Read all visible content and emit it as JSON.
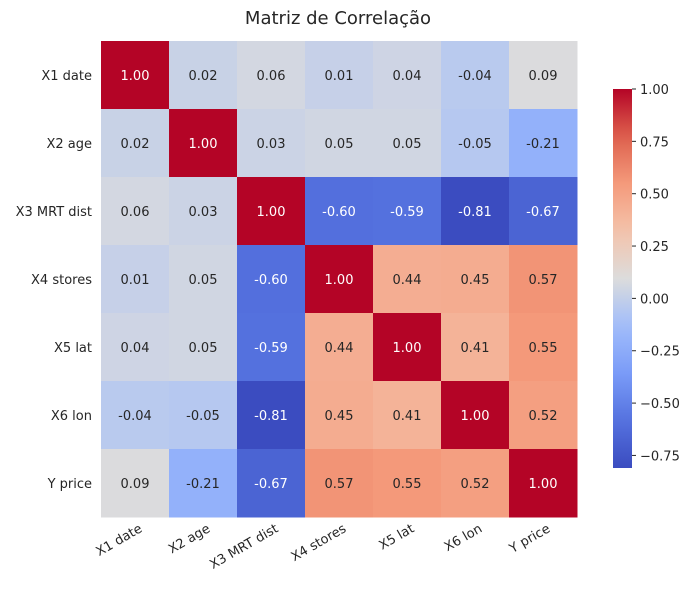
{
  "chart_data": {
    "type": "heatmap",
    "title": "Matriz de Correlação",
    "rows": [
      "X1 date",
      "X2 age",
      "X3 MRT dist",
      "X4 stores",
      "X5 lat",
      "X6 lon",
      "Y price"
    ],
    "columns": [
      "X1 date",
      "X2 age",
      "X3 MRT dist",
      "X4 stores",
      "X5 lat",
      "X6 lon",
      "Y price"
    ],
    "values": [
      [
        1.0,
        0.02,
        0.06,
        0.01,
        0.04,
        -0.04,
        0.09
      ],
      [
        0.02,
        1.0,
        0.03,
        0.05,
        0.05,
        -0.05,
        -0.21
      ],
      [
        0.06,
        0.03,
        1.0,
        -0.6,
        -0.59,
        -0.81,
        -0.67
      ],
      [
        0.01,
        0.05,
        -0.6,
        1.0,
        0.44,
        0.45,
        0.57
      ],
      [
        0.04,
        0.05,
        -0.59,
        0.44,
        1.0,
        0.41,
        0.55
      ],
      [
        -0.04,
        -0.05,
        -0.81,
        0.45,
        0.41,
        1.0,
        0.52
      ],
      [
        0.09,
        -0.21,
        -0.67,
        0.57,
        0.55,
        0.52,
        1.0
      ]
    ],
    "colormap": "coolwarm",
    "vmin": -0.81,
    "vmax": 1.0,
    "colorbar_ticks": [
      "1.00",
      "0.75",
      "0.50",
      "0.25",
      "0.00",
      "−0.25",
      "−0.50",
      "−0.75"
    ],
    "colorbar_tick_values": [
      1.0,
      0.75,
      0.5,
      0.25,
      0.0,
      -0.25,
      -0.5,
      -0.75
    ],
    "annotations": true,
    "grid": false,
    "legend": "colorbar-right"
  }
}
